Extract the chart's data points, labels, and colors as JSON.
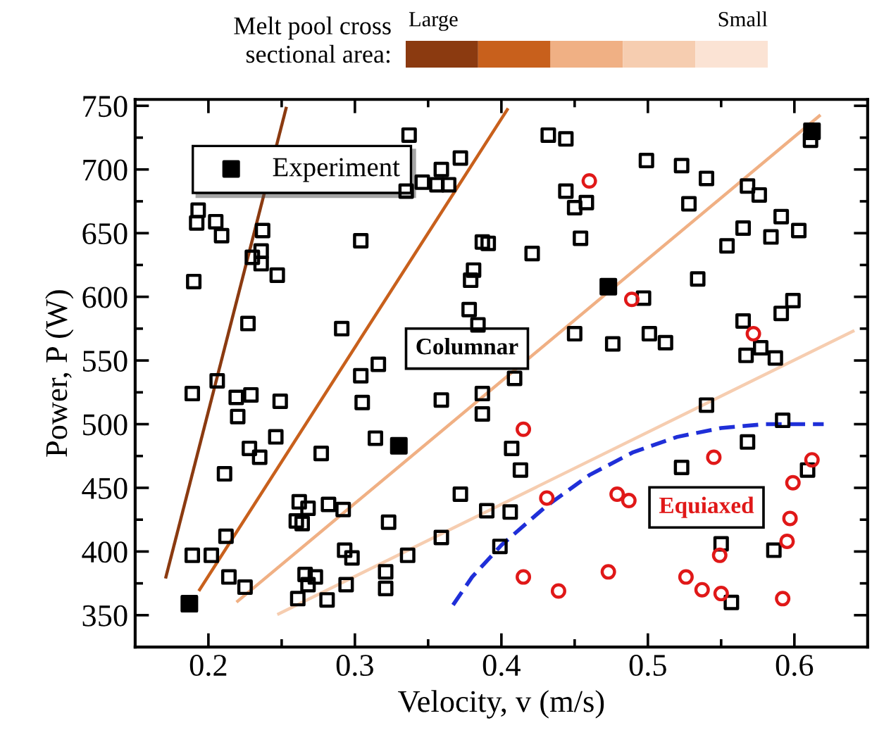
{
  "chart_data": {
    "type": "scatter",
    "xlabel": "Velocity, v (m/s)",
    "ylabel": "Power, P (W)",
    "xlim": [
      0.15,
      0.65
    ],
    "ylim": [
      325,
      755
    ],
    "xticks": [
      0.2,
      {
        "value": 0.25,
        "label": null
      },
      0.3,
      {
        "value": 0.35,
        "label": null
      },
      0.4,
      {
        "value": 0.45,
        "label": null
      },
      0.5,
      {
        "value": 0.55,
        "label": null
      },
      0.6
    ],
    "yticks": [
      350,
      {
        "value": 375,
        "label": null
      },
      400,
      {
        "value": 425,
        "label": null
      },
      450,
      {
        "value": 475,
        "label": null
      },
      500,
      {
        "value": 525,
        "label": null
      },
      550,
      {
        "value": 575,
        "label": null
      },
      600,
      {
        "value": 625,
        "label": null
      },
      650,
      {
        "value": 675,
        "label": null
      },
      700,
      {
        "value": 725,
        "label": null
      },
      750
    ],
    "grid": false,
    "legend": "top left",
    "annotations": [
      "Columnar",
      "Equiaxed",
      "Melt pool cross\nsectional area:",
      "Large",
      "Small"
    ],
    "series": [
      {
        "type": "line",
        "color": "#8b3a10",
        "line_style": "solid",
        "marker": "none",
        "x": [
          0.171,
          0.253
        ],
        "values": [
          380,
          748
        ]
      },
      {
        "type": "line",
        "color": "#c8601c",
        "line_style": "solid",
        "marker": "none",
        "x": [
          0.194,
          0.404
        ],
        "values": [
          370,
          747
        ]
      },
      {
        "type": "line",
        "color": "#f0b084",
        "line_style": "solid",
        "marker": "none",
        "x": [
          0.22,
          0.617
        ],
        "values": [
          361,
          742
        ]
      },
      {
        "type": "line",
        "color": "#f6cdb0",
        "line_style": "solid",
        "marker": "none",
        "x": [
          0.248,
          0.64
        ],
        "values": [
          351,
          573
        ]
      },
      {
        "type": "line",
        "color": "#1f2fd8",
        "line_style": "dashed",
        "marker": "none",
        "x": [
          0.367,
          0.38,
          0.4,
          0.43,
          0.46,
          0.49,
          0.52,
          0.55,
          0.58,
          0.62
        ],
        "values": [
          358,
          380,
          405,
          435,
          460,
          478,
          490,
          497,
          500,
          500
        ]
      },
      {
        "type": "scatter",
        "color": "#000000",
        "marker": "square",
        "x": [
          0.337,
          0.372,
          0.359,
          0.346,
          0.356,
          0.364,
          0.335,
          0.193,
          0.192,
          0.205,
          0.209,
          0.237,
          0.304,
          0.387,
          0.391,
          0.236,
          0.23,
          0.236,
          0.247,
          0.19,
          0.381,
          0.379,
          0.378,
          0.227,
          0.291,
          0.384,
          0.304,
          0.316,
          0.206,
          0.189,
          0.219,
          0.229,
          0.249,
          0.305,
          0.359,
          0.387,
          0.387,
          0.22,
          0.246,
          0.228,
          0.235,
          0.277,
          0.314,
          0.211,
          0.372,
          0.262,
          0.268,
          0.282,
          0.292,
          0.26,
          0.264,
          0.323,
          0.39,
          0.212,
          0.359,
          0.189,
          0.202,
          0.293,
          0.298,
          0.336,
          0.266,
          0.273,
          0.321,
          0.214,
          0.225,
          0.294,
          0.268,
          0.321,
          0.261,
          0.281,
          0.399,
          0.432,
          0.444,
          0.499,
          0.523,
          0.54,
          0.568,
          0.576,
          0.528,
          0.591,
          0.603,
          0.565,
          0.554,
          0.584,
          0.444,
          0.458,
          0.45,
          0.454,
          0.421,
          0.534,
          0.497,
          0.45,
          0.476,
          0.501,
          0.512,
          0.565,
          0.591,
          0.599,
          0.567,
          0.577,
          0.587,
          0.409,
          0.611,
          0.54,
          0.592,
          0.568,
          0.407,
          0.413,
          0.523,
          0.609,
          0.406,
          0.55,
          0.586,
          0.557
        ],
        "values": [
          727,
          709,
          700,
          690,
          688,
          688,
          683,
          668,
          658,
          659,
          648,
          652,
          644,
          643,
          642,
          636,
          631,
          626,
          617,
          612,
          621,
          613,
          590,
          579,
          575,
          578,
          538,
          547,
          534,
          524,
          521,
          523,
          518,
          517,
          519,
          524,
          508,
          506,
          490,
          481,
          474,
          477,
          489,
          461,
          445,
          439,
          434,
          437,
          433,
          424,
          422,
          423,
          432,
          412,
          411,
          397,
          397,
          401,
          395,
          397,
          382,
          380,
          384,
          380,
          372,
          374,
          374,
          371,
          363,
          362,
          404,
          727,
          724,
          707,
          703,
          693,
          687,
          680,
          673,
          663,
          652,
          654,
          640,
          647,
          683,
          674,
          670,
          646,
          634,
          614,
          599,
          571,
          563,
          571,
          564,
          581,
          587,
          597,
          554,
          560,
          552,
          536,
          723,
          515,
          503,
          486,
          481,
          464,
          466,
          464,
          431,
          406,
          401,
          360
        ]
      },
      {
        "type": "scatter",
        "color": "#e01818",
        "marker": "circle",
        "x": [
          0.46,
          0.489,
          0.572,
          0.415,
          0.545,
          0.612,
          0.431,
          0.479,
          0.487,
          0.599,
          0.597,
          0.595,
          0.549,
          0.415,
          0.439,
          0.473,
          0.526,
          0.537,
          0.55,
          0.592
        ],
        "values": [
          691,
          598,
          571,
          496,
          474,
          472,
          442,
          445,
          440,
          454,
          426,
          408,
          397,
          380,
          369,
          384,
          380,
          370,
          367,
          363
        ]
      },
      {
        "type": "scatter",
        "name": "Experiment",
        "color": "#000000",
        "marker": "square",
        "x": [
          0.187,
          0.33,
          0.473,
          0.612
        ],
        "values": [
          359,
          483,
          608,
          730
        ]
      }
    ]
  }
}
